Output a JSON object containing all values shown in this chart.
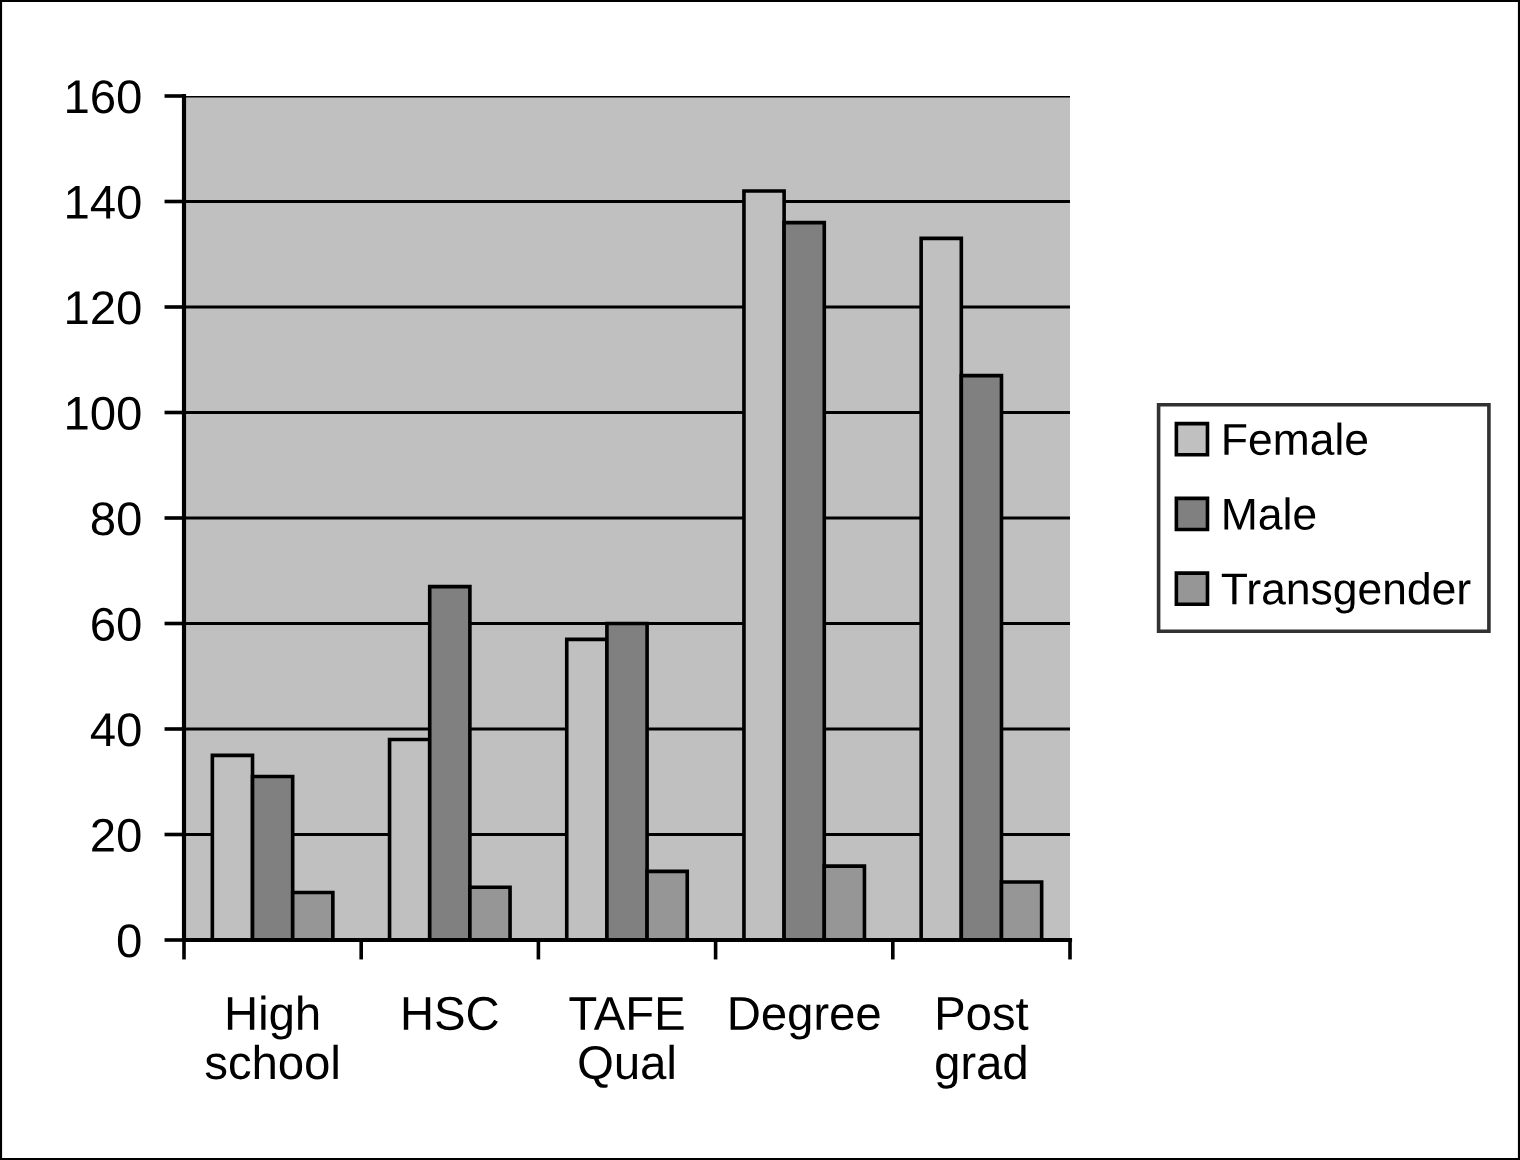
{
  "chart_data": {
    "type": "bar",
    "categories": [
      "High\nschool",
      "HSC",
      "TAFE\nQual",
      "Degree",
      "Post\ngrad"
    ],
    "series": [
      {
        "name": "Female",
        "color": "#c0c0c0",
        "values": [
          35,
          38,
          57,
          142,
          133
        ]
      },
      {
        "name": "Male",
        "color": "#808080",
        "values": [
          31,
          67,
          60,
          136,
          107
        ]
      },
      {
        "name": "Transgender",
        "color": "#969696",
        "values": [
          9,
          10,
          13,
          14,
          11
        ]
      }
    ],
    "ylim": [
      0,
      160
    ],
    "yticks": [
      0,
      20,
      40,
      60,
      80,
      100,
      120,
      140,
      160
    ],
    "grid": "y",
    "legend": "right"
  }
}
